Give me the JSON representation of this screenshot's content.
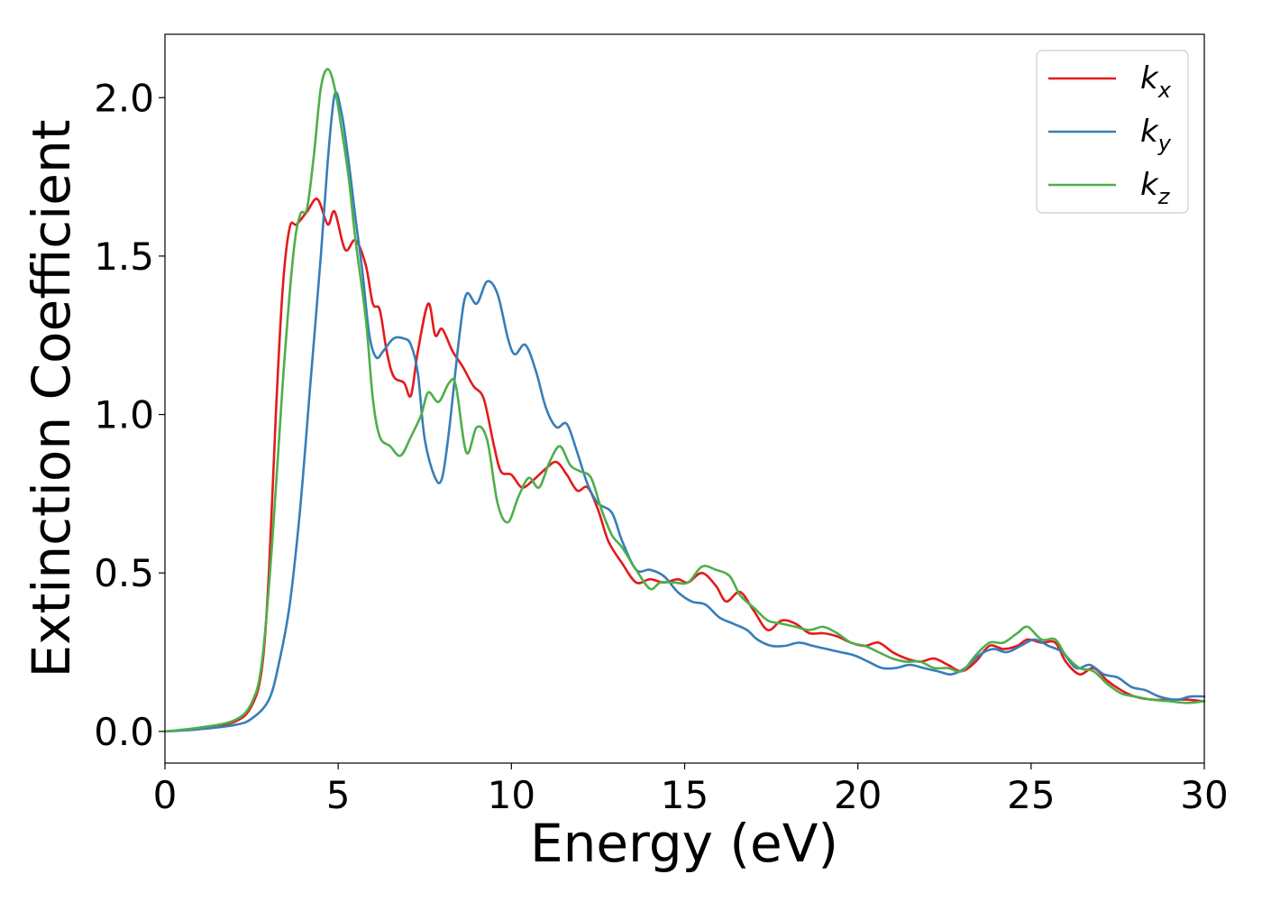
{
  "chart_data": {
    "type": "line",
    "title": "",
    "xlabel": "Energy (eV)",
    "ylabel": "Extinction Coefficient",
    "xlim": [
      0,
      30
    ],
    "ylim": [
      -0.1,
      2.2
    ],
    "xticks": [
      0,
      5,
      10,
      15,
      20,
      25,
      30
    ],
    "xtick_labels": [
      "0",
      "5",
      "10",
      "15",
      "20",
      "25",
      "30"
    ],
    "yticks": [
      0.0,
      0.5,
      1.0,
      1.5,
      2.0
    ],
    "ytick_labels": [
      "0.0",
      "0.5",
      "1.0",
      "1.5",
      "2.0"
    ],
    "grid": false,
    "legend_position": "top-right",
    "series": [
      {
        "name": "k_x",
        "base": "k",
        "sub": "x",
        "color": "#e41a1c",
        "points": [
          [
            0,
            0
          ],
          [
            1,
            0.01
          ],
          [
            2,
            0.03
          ],
          [
            2.5,
            0.08
          ],
          [
            2.8,
            0.2
          ],
          [
            3.0,
            0.5
          ],
          [
            3.2,
            1.0
          ],
          [
            3.4,
            1.4
          ],
          [
            3.6,
            1.59
          ],
          [
            3.8,
            1.6
          ],
          [
            4.1,
            1.64
          ],
          [
            4.4,
            1.68
          ],
          [
            4.7,
            1.6
          ],
          [
            4.9,
            1.64
          ],
          [
            5.2,
            1.52
          ],
          [
            5.5,
            1.55
          ],
          [
            5.8,
            1.47
          ],
          [
            6.0,
            1.35
          ],
          [
            6.2,
            1.33
          ],
          [
            6.4,
            1.2
          ],
          [
            6.6,
            1.12
          ],
          [
            6.9,
            1.1
          ],
          [
            7.1,
            1.06
          ],
          [
            7.3,
            1.2
          ],
          [
            7.6,
            1.35
          ],
          [
            7.8,
            1.25
          ],
          [
            8.0,
            1.27
          ],
          [
            8.3,
            1.2
          ],
          [
            8.6,
            1.15
          ],
          [
            8.9,
            1.09
          ],
          [
            9.2,
            1.05
          ],
          [
            9.5,
            0.9
          ],
          [
            9.7,
            0.82
          ],
          [
            10.0,
            0.81
          ],
          [
            10.3,
            0.77
          ],
          [
            10.6,
            0.79
          ],
          [
            11.0,
            0.83
          ],
          [
            11.3,
            0.85
          ],
          [
            11.6,
            0.81
          ],
          [
            11.9,
            0.76
          ],
          [
            12.2,
            0.77
          ],
          [
            12.5,
            0.7
          ],
          [
            12.8,
            0.6
          ],
          [
            13.2,
            0.53
          ],
          [
            13.6,
            0.47
          ],
          [
            14.0,
            0.48
          ],
          [
            14.4,
            0.47
          ],
          [
            14.8,
            0.48
          ],
          [
            15.1,
            0.47
          ],
          [
            15.5,
            0.5
          ],
          [
            15.9,
            0.46
          ],
          [
            16.2,
            0.41
          ],
          [
            16.6,
            0.44
          ],
          [
            17.0,
            0.38
          ],
          [
            17.4,
            0.32
          ],
          [
            17.8,
            0.35
          ],
          [
            18.2,
            0.34
          ],
          [
            18.6,
            0.31
          ],
          [
            19.0,
            0.31
          ],
          [
            19.4,
            0.3
          ],
          [
            19.8,
            0.28
          ],
          [
            20.2,
            0.27
          ],
          [
            20.6,
            0.28
          ],
          [
            21.0,
            0.25
          ],
          [
            21.4,
            0.23
          ],
          [
            21.8,
            0.22
          ],
          [
            22.2,
            0.23
          ],
          [
            22.6,
            0.21
          ],
          [
            23.0,
            0.19
          ],
          [
            23.4,
            0.22
          ],
          [
            23.8,
            0.27
          ],
          [
            24.2,
            0.26
          ],
          [
            24.6,
            0.27
          ],
          [
            24.9,
            0.29
          ],
          [
            25.3,
            0.28
          ],
          [
            25.7,
            0.28
          ],
          [
            26.0,
            0.22
          ],
          [
            26.4,
            0.18
          ],
          [
            26.8,
            0.2
          ],
          [
            27.2,
            0.16
          ],
          [
            27.6,
            0.13
          ],
          [
            28.0,
            0.11
          ],
          [
            28.5,
            0.1
          ],
          [
            29.0,
            0.1
          ],
          [
            29.5,
            0.1
          ],
          [
            30,
            0.095
          ]
        ]
      },
      {
        "name": "k_y",
        "base": "k",
        "sub": "y",
        "color": "#377eb8",
        "points": [
          [
            0,
            0
          ],
          [
            1,
            0.007
          ],
          [
            2,
            0.02
          ],
          [
            2.5,
            0.04
          ],
          [
            3.0,
            0.1
          ],
          [
            3.3,
            0.22
          ],
          [
            3.6,
            0.4
          ],
          [
            3.9,
            0.7
          ],
          [
            4.2,
            1.1
          ],
          [
            4.5,
            1.5
          ],
          [
            4.7,
            1.8
          ],
          [
            4.9,
            2.01
          ],
          [
            5.1,
            1.95
          ],
          [
            5.3,
            1.8
          ],
          [
            5.5,
            1.62
          ],
          [
            5.7,
            1.45
          ],
          [
            5.9,
            1.25
          ],
          [
            6.1,
            1.18
          ],
          [
            6.3,
            1.2
          ],
          [
            6.6,
            1.24
          ],
          [
            6.9,
            1.24
          ],
          [
            7.1,
            1.22
          ],
          [
            7.3,
            1.13
          ],
          [
            7.5,
            0.92
          ],
          [
            7.8,
            0.8
          ],
          [
            8.0,
            0.8
          ],
          [
            8.2,
            0.95
          ],
          [
            8.5,
            1.25
          ],
          [
            8.7,
            1.38
          ],
          [
            9.0,
            1.35
          ],
          [
            9.3,
            1.42
          ],
          [
            9.6,
            1.38
          ],
          [
            9.9,
            1.24
          ],
          [
            10.1,
            1.19
          ],
          [
            10.4,
            1.22
          ],
          [
            10.7,
            1.14
          ],
          [
            11.0,
            1.02
          ],
          [
            11.3,
            0.96
          ],
          [
            11.6,
            0.97
          ],
          [
            11.9,
            0.88
          ],
          [
            12.2,
            0.78
          ],
          [
            12.5,
            0.72
          ],
          [
            12.9,
            0.69
          ],
          [
            13.2,
            0.6
          ],
          [
            13.6,
            0.51
          ],
          [
            14.0,
            0.51
          ],
          [
            14.4,
            0.49
          ],
          [
            14.8,
            0.44
          ],
          [
            15.2,
            0.41
          ],
          [
            15.6,
            0.4
          ],
          [
            16.0,
            0.36
          ],
          [
            16.4,
            0.34
          ],
          [
            16.8,
            0.32
          ],
          [
            17.1,
            0.29
          ],
          [
            17.5,
            0.27
          ],
          [
            17.9,
            0.27
          ],
          [
            18.3,
            0.28
          ],
          [
            18.7,
            0.27
          ],
          [
            19.1,
            0.26
          ],
          [
            19.5,
            0.25
          ],
          [
            19.9,
            0.24
          ],
          [
            20.3,
            0.22
          ],
          [
            20.7,
            0.2
          ],
          [
            21.1,
            0.2
          ],
          [
            21.5,
            0.21
          ],
          [
            21.9,
            0.2
          ],
          [
            22.3,
            0.19
          ],
          [
            22.7,
            0.18
          ],
          [
            23.1,
            0.2
          ],
          [
            23.5,
            0.24
          ],
          [
            23.9,
            0.26
          ],
          [
            24.3,
            0.25
          ],
          [
            24.7,
            0.27
          ],
          [
            25.1,
            0.29
          ],
          [
            25.5,
            0.27
          ],
          [
            25.9,
            0.25
          ],
          [
            26.3,
            0.2
          ],
          [
            26.7,
            0.21
          ],
          [
            27.1,
            0.18
          ],
          [
            27.5,
            0.17
          ],
          [
            27.9,
            0.14
          ],
          [
            28.3,
            0.13
          ],
          [
            28.7,
            0.11
          ],
          [
            29.2,
            0.1
          ],
          [
            29.6,
            0.11
          ],
          [
            30,
            0.11
          ]
        ]
      },
      {
        "name": "k_z",
        "base": "k",
        "sub": "z",
        "color": "#4daf4a",
        "points": [
          [
            0,
            0
          ],
          [
            1,
            0.012
          ],
          [
            2,
            0.035
          ],
          [
            2.5,
            0.09
          ],
          [
            2.8,
            0.22
          ],
          [
            3.1,
            0.6
          ],
          [
            3.4,
            1.1
          ],
          [
            3.7,
            1.5
          ],
          [
            3.9,
            1.63
          ],
          [
            4.1,
            1.65
          ],
          [
            4.3,
            1.82
          ],
          [
            4.5,
            2.03
          ],
          [
            4.7,
            2.09
          ],
          [
            4.9,
            2.03
          ],
          [
            5.1,
            1.9
          ],
          [
            5.3,
            1.75
          ],
          [
            5.5,
            1.55
          ],
          [
            5.8,
            1.3
          ],
          [
            6.0,
            1.05
          ],
          [
            6.2,
            0.93
          ],
          [
            6.5,
            0.9
          ],
          [
            6.8,
            0.87
          ],
          [
            7.1,
            0.93
          ],
          [
            7.4,
            1.0
          ],
          [
            7.6,
            1.07
          ],
          [
            7.9,
            1.04
          ],
          [
            8.2,
            1.1
          ],
          [
            8.4,
            1.09
          ],
          [
            8.7,
            0.88
          ],
          [
            9.0,
            0.96
          ],
          [
            9.3,
            0.92
          ],
          [
            9.6,
            0.72
          ],
          [
            9.9,
            0.66
          ],
          [
            10.2,
            0.74
          ],
          [
            10.5,
            0.8
          ],
          [
            10.8,
            0.77
          ],
          [
            11.1,
            0.85
          ],
          [
            11.4,
            0.9
          ],
          [
            11.7,
            0.84
          ],
          [
            12.0,
            0.82
          ],
          [
            12.3,
            0.8
          ],
          [
            12.6,
            0.7
          ],
          [
            12.9,
            0.62
          ],
          [
            13.2,
            0.58
          ],
          [
            13.6,
            0.51
          ],
          [
            14.0,
            0.45
          ],
          [
            14.3,
            0.47
          ],
          [
            14.7,
            0.47
          ],
          [
            15.1,
            0.47
          ],
          [
            15.5,
            0.52
          ],
          [
            15.9,
            0.51
          ],
          [
            16.3,
            0.49
          ],
          [
            16.6,
            0.43
          ],
          [
            17.0,
            0.39
          ],
          [
            17.4,
            0.35
          ],
          [
            17.8,
            0.34
          ],
          [
            18.2,
            0.33
          ],
          [
            18.6,
            0.32
          ],
          [
            19.0,
            0.33
          ],
          [
            19.4,
            0.31
          ],
          [
            19.8,
            0.28
          ],
          [
            20.2,
            0.27
          ],
          [
            20.6,
            0.25
          ],
          [
            21.0,
            0.23
          ],
          [
            21.4,
            0.22
          ],
          [
            21.8,
            0.22
          ],
          [
            22.2,
            0.2
          ],
          [
            22.6,
            0.2
          ],
          [
            23.0,
            0.19
          ],
          [
            23.4,
            0.24
          ],
          [
            23.8,
            0.28
          ],
          [
            24.2,
            0.28
          ],
          [
            24.6,
            0.31
          ],
          [
            24.9,
            0.33
          ],
          [
            25.3,
            0.29
          ],
          [
            25.7,
            0.29
          ],
          [
            26.0,
            0.24
          ],
          [
            26.4,
            0.2
          ],
          [
            26.8,
            0.19
          ],
          [
            27.2,
            0.15
          ],
          [
            27.6,
            0.12
          ],
          [
            28.0,
            0.11
          ],
          [
            28.5,
            0.1
          ],
          [
            29.0,
            0.095
          ],
          [
            29.5,
            0.09
          ],
          [
            30,
            0.095
          ]
        ]
      }
    ]
  }
}
